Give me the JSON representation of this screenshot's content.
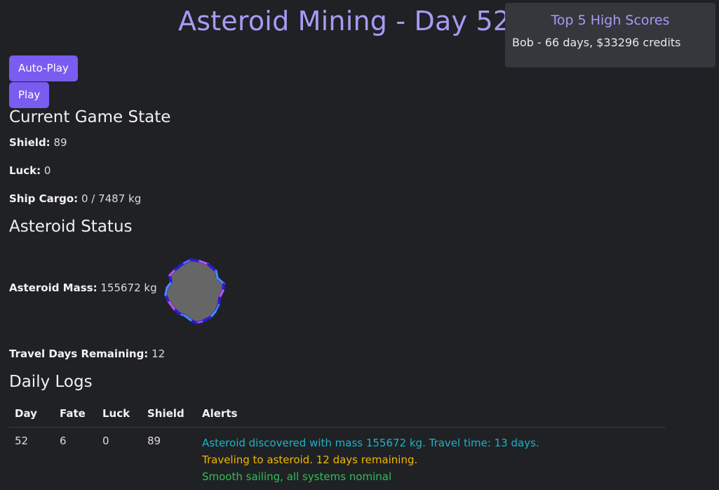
{
  "header": {
    "title": "Asteroid Mining - Day 52"
  },
  "high_scores": {
    "title": "Top 5 High Scores",
    "entries": [
      "Bob - 66 days, $33296 credits"
    ]
  },
  "controls": {
    "autoplay_label": "Auto-Play",
    "play_label": "Play"
  },
  "game_state": {
    "heading": "Current Game State",
    "shield_label": "Shield:",
    "shield_value": "89",
    "luck_label": "Luck:",
    "luck_value": "0",
    "cargo_label": "Ship Cargo:",
    "cargo_value": "0 / 7487 kg"
  },
  "asteroid": {
    "heading": "Asteroid Status",
    "mass_label": "Asteroid Mass:",
    "mass_value": "155672 kg",
    "travel_label": "Travel Days Remaining:",
    "travel_value": "12",
    "colors": {
      "fill": "#666666",
      "edge_primary": "#2a1bd6",
      "edge_accent": "#4b8fe8",
      "edge_highlight": "#c455e0"
    }
  },
  "logs": {
    "heading": "Daily Logs",
    "columns": [
      "Day",
      "Fate",
      "Luck",
      "Shield",
      "Alerts"
    ],
    "rows": [
      {
        "day": "52",
        "fate": "6",
        "luck": "0",
        "shield": "89",
        "alerts": [
          {
            "text": "Asteroid discovered with mass 155672 kg. Travel time: 13 days.",
            "level": "info",
            "color": "#1bb3c9"
          },
          {
            "text": "Traveling to asteroid. 12 days remaining.",
            "level": "warning",
            "color": "#f0b800"
          },
          {
            "text": "Smooth sailing, all systems nominal",
            "level": "success",
            "color": "#2fbf5a"
          }
        ]
      }
    ]
  },
  "theme": {
    "background": "#202124",
    "accent": "#a69bf5",
    "button": "#7a5cf0",
    "panel": "#35373d"
  }
}
